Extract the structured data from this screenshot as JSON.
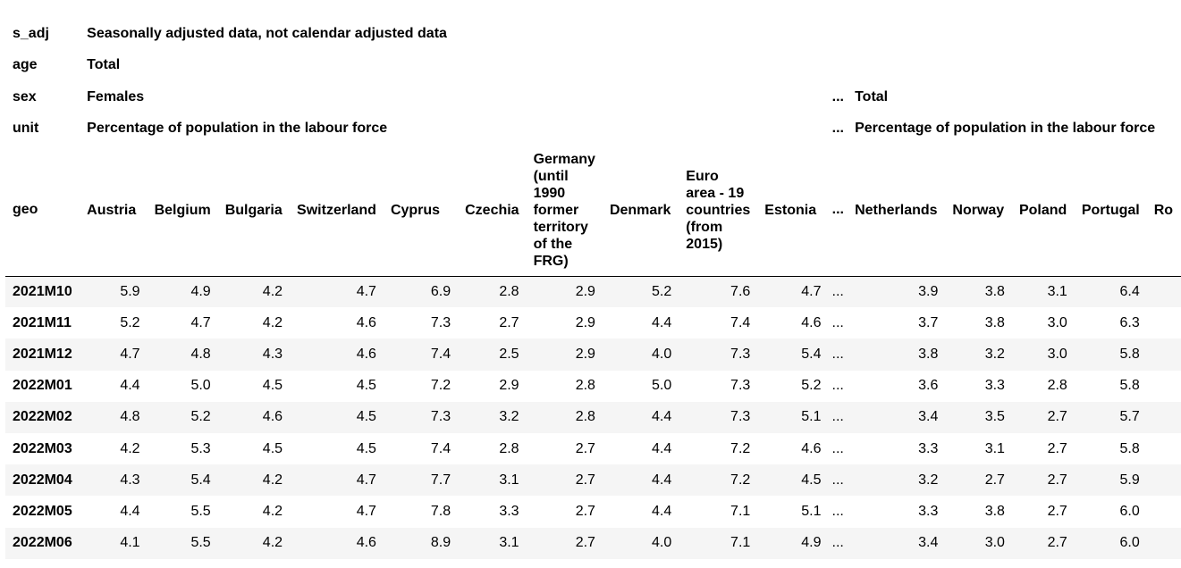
{
  "meta_rows": [
    {
      "label": "s_adj",
      "value": "Seasonally adjusted data, not calendar adjusted data",
      "ellipsis": "",
      "right_value": ""
    },
    {
      "label": "age",
      "value": "Total",
      "ellipsis": "",
      "right_value": ""
    },
    {
      "label": "sex",
      "value": "Females",
      "ellipsis": "...",
      "right_value": "Total"
    },
    {
      "label": "unit",
      "value": "Percentage of population in the labour force",
      "ellipsis": "...",
      "right_value": "Percentage of population in the labour force"
    }
  ],
  "geo_label": "geo",
  "ellipsis": "...",
  "countries_left": [
    "Austria",
    "Belgium",
    "Bulgaria",
    "Switzerland",
    "Cyprus",
    "Czechia",
    "Germany (until 1990 former territory of the FRG)",
    "Denmark",
    "Euro area - 19 countries (from 2015)",
    "Estonia"
  ],
  "countries_right": [
    "Netherlands",
    "Norway",
    "Poland",
    "Portugal",
    "Ro"
  ],
  "rows": [
    {
      "period": "2021M10",
      "left": [
        "5.9",
        "4.9",
        "4.2",
        "4.7",
        "6.9",
        "2.8",
        "2.9",
        "5.2",
        "7.6",
        "4.7"
      ],
      "right": [
        "3.9",
        "3.8",
        "3.1",
        "6.4"
      ]
    },
    {
      "period": "2021M11",
      "left": [
        "5.2",
        "4.7",
        "4.2",
        "4.6",
        "7.3",
        "2.7",
        "2.9",
        "4.4",
        "7.4",
        "4.6"
      ],
      "right": [
        "3.7",
        "3.8",
        "3.0",
        "6.3"
      ]
    },
    {
      "period": "2021M12",
      "left": [
        "4.7",
        "4.8",
        "4.3",
        "4.6",
        "7.4",
        "2.5",
        "2.9",
        "4.0",
        "7.3",
        "5.4"
      ],
      "right": [
        "3.8",
        "3.2",
        "3.0",
        "5.8"
      ]
    },
    {
      "period": "2022M01",
      "left": [
        "4.4",
        "5.0",
        "4.5",
        "4.5",
        "7.2",
        "2.9",
        "2.8",
        "5.0",
        "7.3",
        "5.2"
      ],
      "right": [
        "3.6",
        "3.3",
        "2.8",
        "5.8"
      ]
    },
    {
      "period": "2022M02",
      "left": [
        "4.8",
        "5.2",
        "4.6",
        "4.5",
        "7.3",
        "3.2",
        "2.8",
        "4.4",
        "7.3",
        "5.1"
      ],
      "right": [
        "3.4",
        "3.5",
        "2.7",
        "5.7"
      ]
    },
    {
      "period": "2022M03",
      "left": [
        "4.2",
        "5.3",
        "4.5",
        "4.5",
        "7.4",
        "2.8",
        "2.7",
        "4.4",
        "7.2",
        "4.6"
      ],
      "right": [
        "3.3",
        "3.1",
        "2.7",
        "5.8"
      ]
    },
    {
      "period": "2022M04",
      "left": [
        "4.3",
        "5.4",
        "4.2",
        "4.7",
        "7.7",
        "3.1",
        "2.7",
        "4.4",
        "7.2",
        "4.5"
      ],
      "right": [
        "3.2",
        "2.7",
        "2.7",
        "5.9"
      ]
    },
    {
      "period": "2022M05",
      "left": [
        "4.4",
        "5.5",
        "4.2",
        "4.7",
        "7.8",
        "3.3",
        "2.7",
        "4.4",
        "7.1",
        "5.1"
      ],
      "right": [
        "3.3",
        "3.8",
        "2.7",
        "6.0"
      ]
    },
    {
      "period": "2022M06",
      "left": [
        "4.1",
        "5.5",
        "4.2",
        "4.6",
        "8.9",
        "3.1",
        "2.7",
        "4.0",
        "7.1",
        "4.9"
      ],
      "right": [
        "3.4",
        "3.0",
        "2.7",
        "6.0"
      ]
    }
  ]
}
